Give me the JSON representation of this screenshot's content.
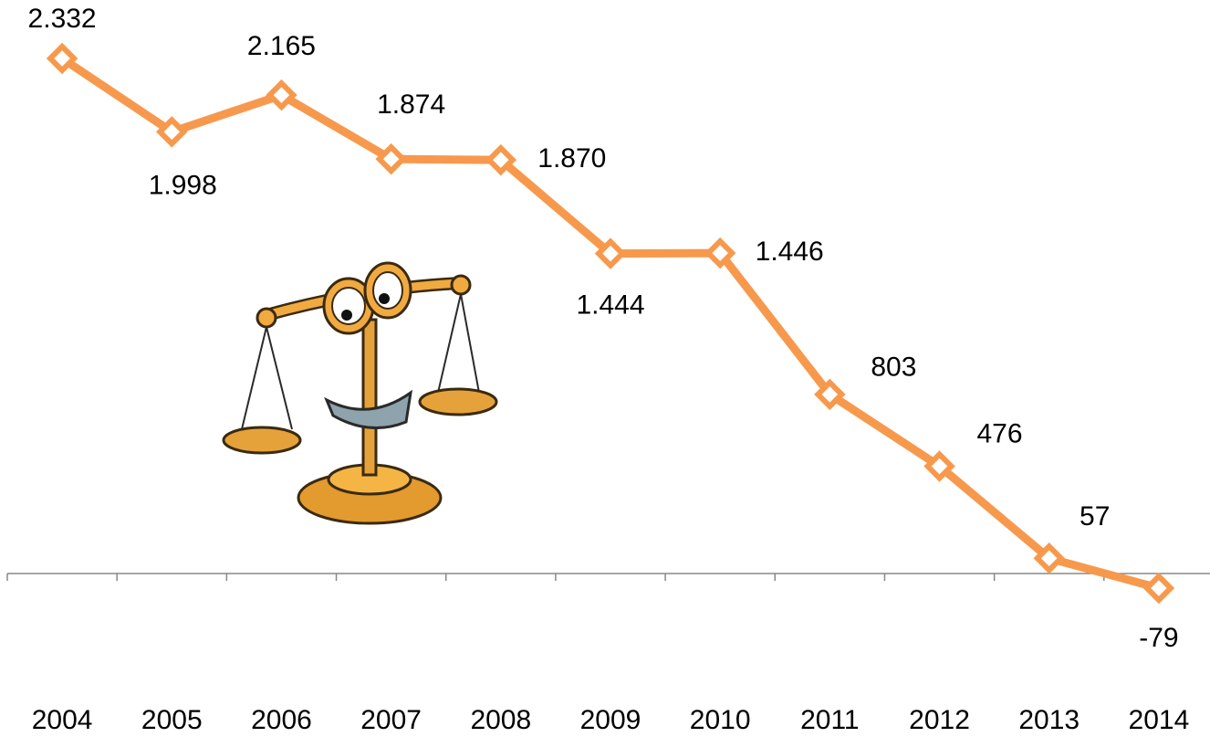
{
  "chart_data": {
    "type": "line",
    "categories": [
      "2004",
      "2005",
      "2006",
      "2007",
      "2008",
      "2009",
      "2010",
      "2011",
      "2012",
      "2013",
      "2014"
    ],
    "values": [
      2332,
      1998,
      2165,
      1874,
      1870,
      1444,
      1446,
      803,
      476,
      57,
      -79
    ],
    "value_labels": [
      "2.332",
      "1.998",
      "2.165",
      "1.874",
      "1.870",
      "1.444",
      "1.446",
      "803",
      "476",
      "57",
      "-79"
    ],
    "color": "#f7994d"
  }
}
